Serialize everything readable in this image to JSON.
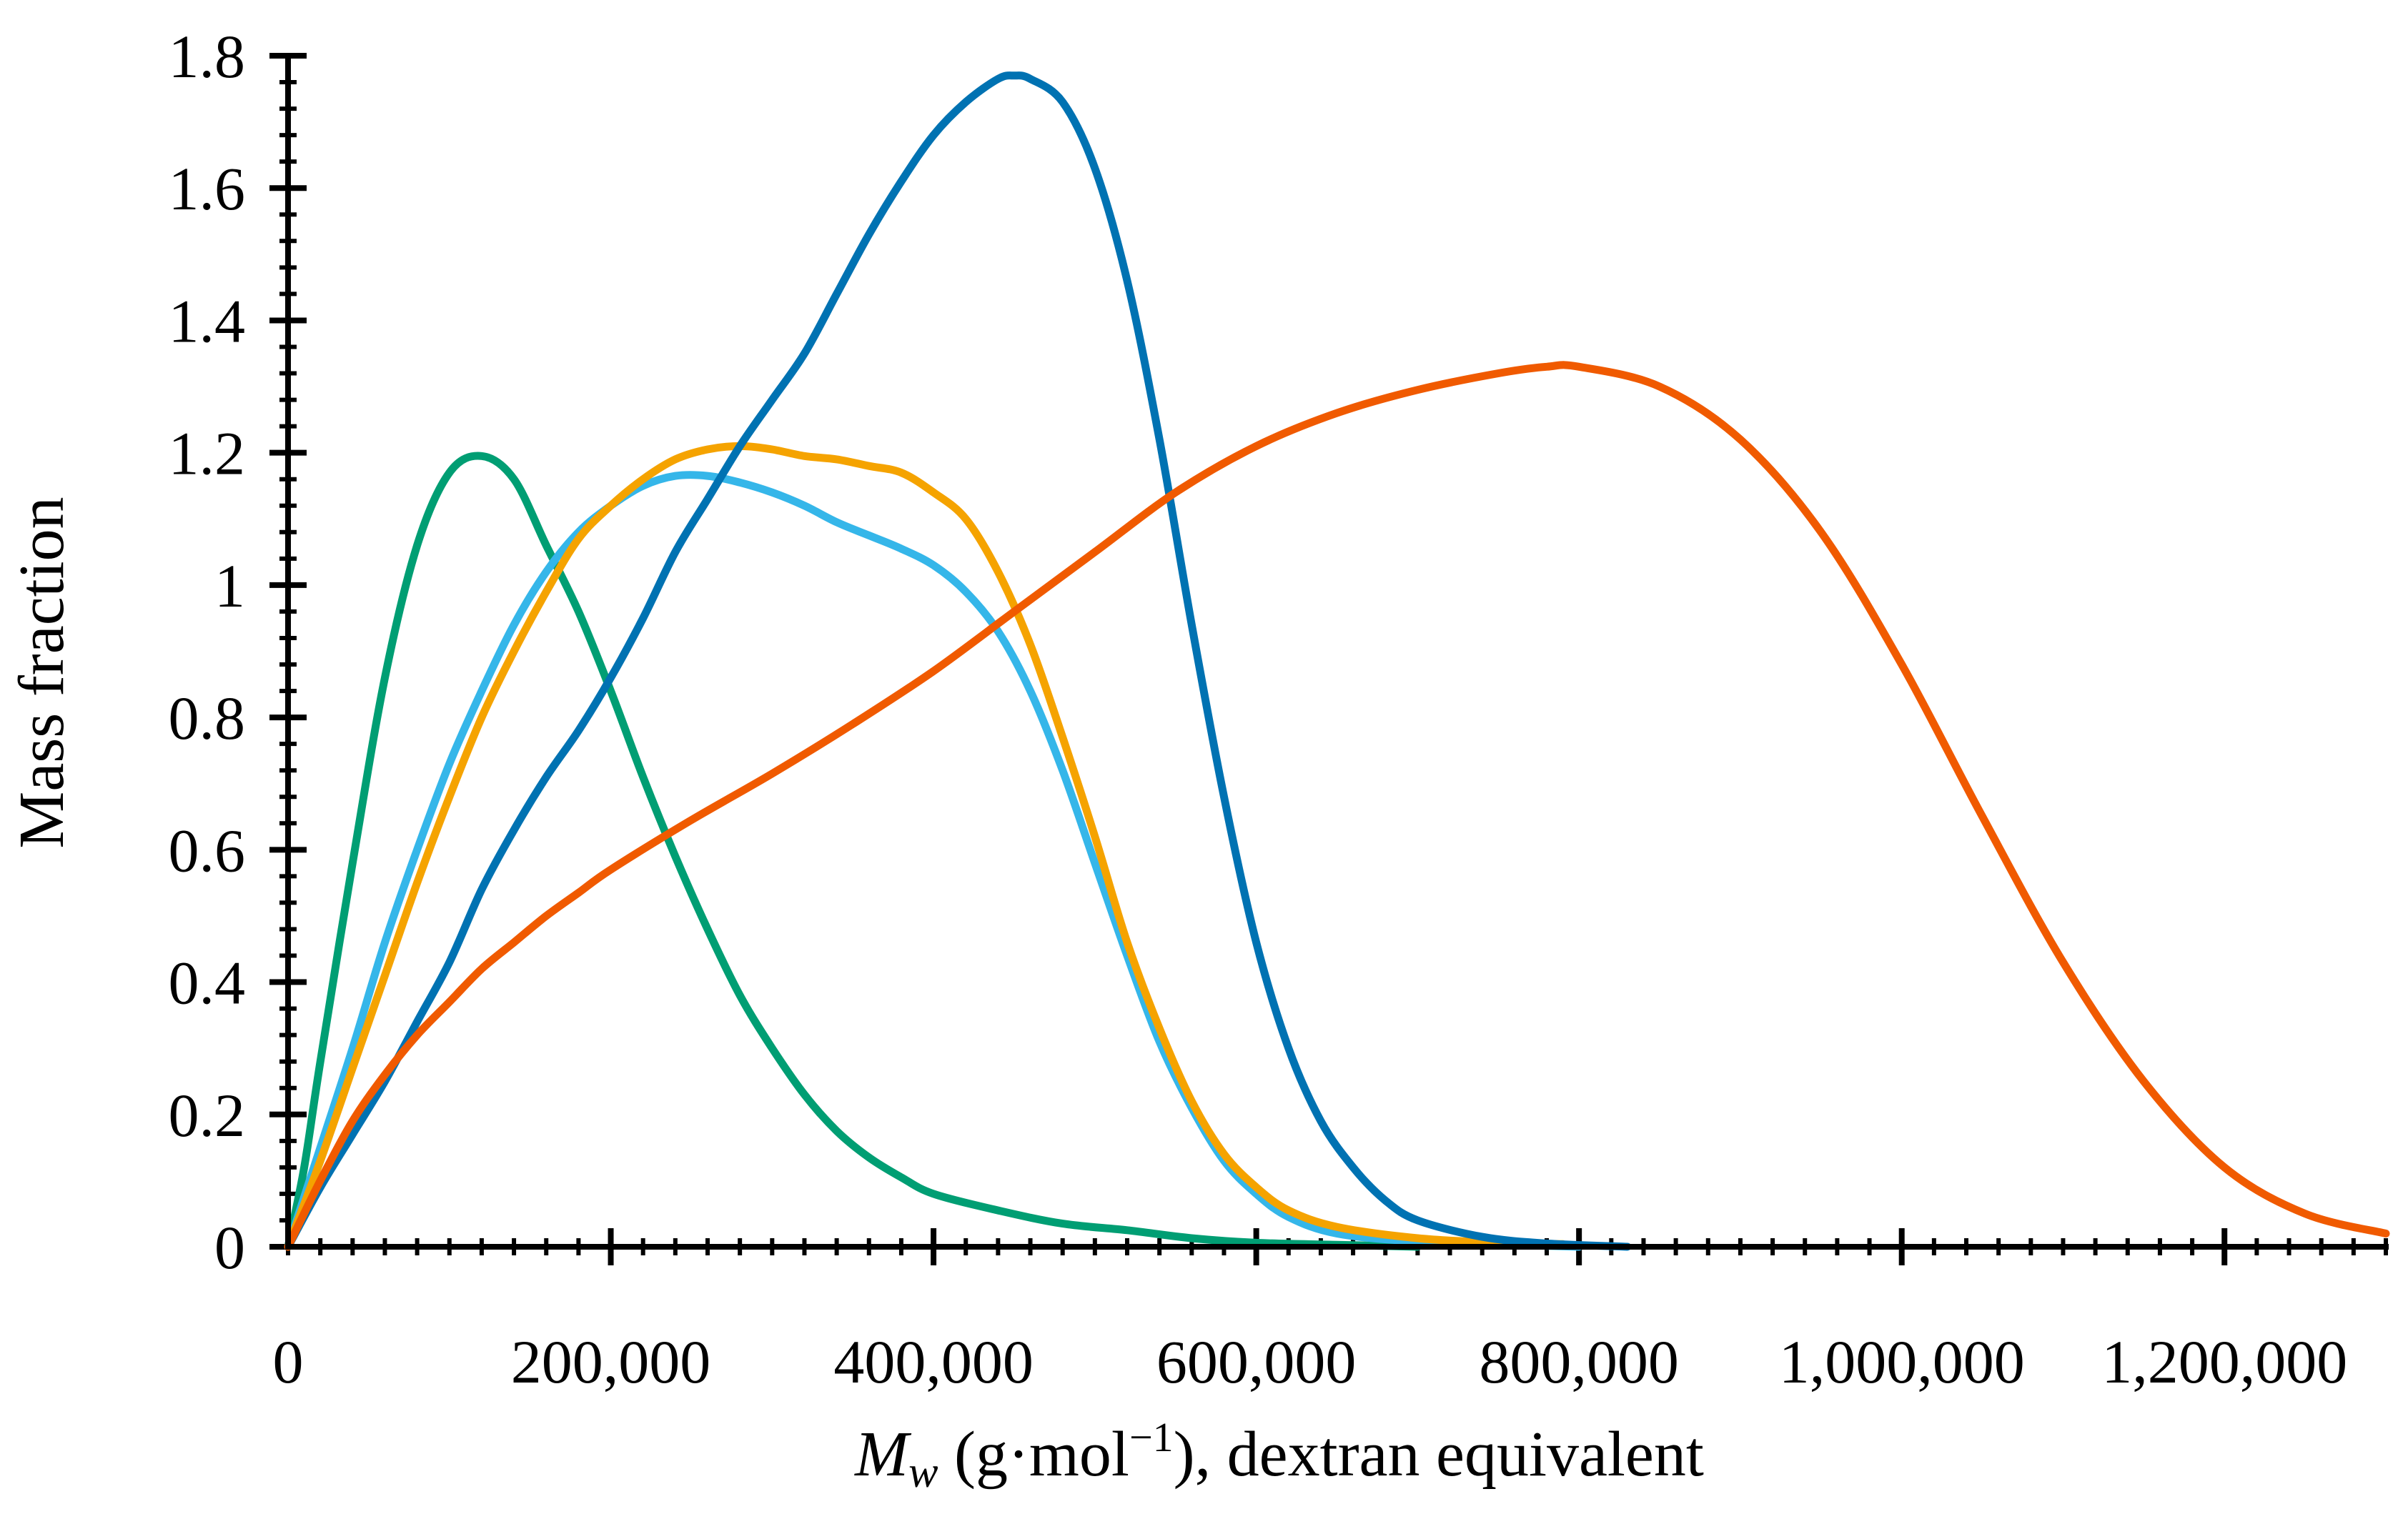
{
  "chart_data": {
    "type": "line",
    "title": "",
    "xlabel": {
      "symbol": "M",
      "subscript": "w",
      "rest": " (g·mol",
      "superscript": "−1",
      "tail": "), dextran equivalent"
    },
    "ylabel": "Mass fraction",
    "xlim": [
      0,
      1300000
    ],
    "ylim": [
      0,
      1.8
    ],
    "x_ticks": [
      0,
      200000,
      400000,
      600000,
      800000,
      1000000,
      1200000
    ],
    "x_tick_labels": [
      "0",
      "200,000",
      "400,000",
      "600,000",
      "800,000",
      "1,000,000",
      "1,200,000"
    ],
    "y_ticks": [
      0,
      0.2,
      0.4,
      0.6,
      0.8,
      1.0,
      1.2,
      1.4,
      1.6,
      1.8
    ],
    "y_tick_labels": [
      "0",
      "0.2",
      "0.4",
      "0.6",
      "0.8",
      "1",
      "1.2",
      "1.4",
      "1.6",
      "1.8"
    ],
    "x_minor_step": 20000,
    "y_minor_step": 0.04,
    "grid": false,
    "legend": "none",
    "series": [
      {
        "color": "#009E73",
        "points": [
          [
            0,
            0
          ],
          [
            10000,
            0.12
          ],
          [
            20000,
            0.28
          ],
          [
            40000,
            0.58
          ],
          [
            60000,
            0.86
          ],
          [
            80000,
            1.06
          ],
          [
            100000,
            1.17
          ],
          [
            120000,
            1.195
          ],
          [
            140000,
            1.16
          ],
          [
            160000,
            1.06
          ],
          [
            180000,
            0.96
          ],
          [
            200000,
            0.84
          ],
          [
            220000,
            0.71
          ],
          [
            240000,
            0.59
          ],
          [
            260000,
            0.48
          ],
          [
            280000,
            0.38
          ],
          [
            300000,
            0.3
          ],
          [
            320000,
            0.23
          ],
          [
            340000,
            0.175
          ],
          [
            360000,
            0.135
          ],
          [
            380000,
            0.105
          ],
          [
            400000,
            0.08
          ],
          [
            440000,
            0.055
          ],
          [
            480000,
            0.035
          ],
          [
            520000,
            0.025
          ],
          [
            560000,
            0.013
          ],
          [
            600000,
            0.006
          ],
          [
            650000,
            0.003
          ],
          [
            700000,
            0.0
          ]
        ]
      },
      {
        "color": "#35B6E9",
        "points": [
          [
            0,
            0
          ],
          [
            20000,
            0.15
          ],
          [
            40000,
            0.3
          ],
          [
            60000,
            0.46
          ],
          [
            80000,
            0.6
          ],
          [
            100000,
            0.73
          ],
          [
            120000,
            0.84
          ],
          [
            140000,
            0.94
          ],
          [
            160000,
            1.02
          ],
          [
            180000,
            1.08
          ],
          [
            200000,
            1.12
          ],
          [
            220000,
            1.15
          ],
          [
            240000,
            1.165
          ],
          [
            260000,
            1.165
          ],
          [
            280000,
            1.155
          ],
          [
            300000,
            1.14
          ],
          [
            320000,
            1.12
          ],
          [
            340000,
            1.095
          ],
          [
            360000,
            1.075
          ],
          [
            380000,
            1.055
          ],
          [
            400000,
            1.03
          ],
          [
            420000,
            0.99
          ],
          [
            440000,
            0.93
          ],
          [
            460000,
            0.84
          ],
          [
            480000,
            0.72
          ],
          [
            500000,
            0.58
          ],
          [
            520000,
            0.44
          ],
          [
            540000,
            0.31
          ],
          [
            560000,
            0.21
          ],
          [
            580000,
            0.13
          ],
          [
            600000,
            0.08
          ],
          [
            620000,
            0.045
          ],
          [
            650000,
            0.02
          ],
          [
            700000,
            0.008
          ],
          [
            760000,
            0.003
          ],
          [
            800000,
            0.0
          ]
        ]
      },
      {
        "color": "#F5A300",
        "points": [
          [
            0,
            0
          ],
          [
            20000,
            0.13
          ],
          [
            40000,
            0.27
          ],
          [
            60000,
            0.41
          ],
          [
            80000,
            0.55
          ],
          [
            100000,
            0.68
          ],
          [
            120000,
            0.8
          ],
          [
            140000,
            0.9
          ],
          [
            160000,
            0.99
          ],
          [
            180000,
            1.07
          ],
          [
            200000,
            1.12
          ],
          [
            220000,
            1.16
          ],
          [
            240000,
            1.19
          ],
          [
            260000,
            1.205
          ],
          [
            280000,
            1.21
          ],
          [
            300000,
            1.205
          ],
          [
            320000,
            1.195
          ],
          [
            340000,
            1.19
          ],
          [
            360000,
            1.18
          ],
          [
            380000,
            1.17
          ],
          [
            400000,
            1.14
          ],
          [
            420000,
            1.1
          ],
          [
            440000,
            1.02
          ],
          [
            460000,
            0.91
          ],
          [
            480000,
            0.77
          ],
          [
            500000,
            0.62
          ],
          [
            520000,
            0.46
          ],
          [
            540000,
            0.33
          ],
          [
            560000,
            0.22
          ],
          [
            580000,
            0.14
          ],
          [
            600000,
            0.09
          ],
          [
            620000,
            0.055
          ],
          [
            650000,
            0.03
          ],
          [
            700000,
            0.013
          ],
          [
            750000,
            0.006
          ],
          [
            790000,
            0.004
          ]
        ]
      },
      {
        "color": "#0072B2",
        "points": [
          [
            0,
            0
          ],
          [
            20000,
            0.09
          ],
          [
            40000,
            0.17
          ],
          [
            60000,
            0.25
          ],
          [
            80000,
            0.34
          ],
          [
            100000,
            0.43
          ],
          [
            120000,
            0.54
          ],
          [
            140000,
            0.63
          ],
          [
            160000,
            0.71
          ],
          [
            180000,
            0.78
          ],
          [
            200000,
            0.86
          ],
          [
            220000,
            0.95
          ],
          [
            240000,
            1.05
          ],
          [
            260000,
            1.13
          ],
          [
            280000,
            1.21
          ],
          [
            300000,
            1.28
          ],
          [
            320000,
            1.35
          ],
          [
            340000,
            1.44
          ],
          [
            360000,
            1.53
          ],
          [
            380000,
            1.61
          ],
          [
            400000,
            1.68
          ],
          [
            420000,
            1.73
          ],
          [
            440000,
            1.765
          ],
          [
            450000,
            1.77
          ],
          [
            460000,
            1.765
          ],
          [
            480000,
            1.73
          ],
          [
            500000,
            1.63
          ],
          [
            520000,
            1.46
          ],
          [
            540000,
            1.22
          ],
          [
            560000,
            0.94
          ],
          [
            580000,
            0.68
          ],
          [
            600000,
            0.46
          ],
          [
            620000,
            0.3
          ],
          [
            640000,
            0.19
          ],
          [
            660000,
            0.12
          ],
          [
            680000,
            0.07
          ],
          [
            700000,
            0.04
          ],
          [
            740000,
            0.015
          ],
          [
            780000,
            0.005
          ],
          [
            830000,
            0.0
          ]
        ]
      },
      {
        "color": "#F05A00",
        "points": [
          [
            0,
            0
          ],
          [
            20000,
            0.1
          ],
          [
            40000,
            0.19
          ],
          [
            60000,
            0.26
          ],
          [
            80000,
            0.32
          ],
          [
            100000,
            0.37
          ],
          [
            120000,
            0.42
          ],
          [
            140000,
            0.46
          ],
          [
            160000,
            0.5
          ],
          [
            180000,
            0.535
          ],
          [
            200000,
            0.57
          ],
          [
            250000,
            0.645
          ],
          [
            300000,
            0.715
          ],
          [
            350000,
            0.79
          ],
          [
            400000,
            0.87
          ],
          [
            450000,
            0.96
          ],
          [
            500000,
            1.05
          ],
          [
            550000,
            1.14
          ],
          [
            600000,
            1.21
          ],
          [
            650000,
            1.26
          ],
          [
            700000,
            1.295
          ],
          [
            750000,
            1.32
          ],
          [
            780000,
            1.33
          ],
          [
            800000,
            1.33
          ],
          [
            850000,
            1.3
          ],
          [
            900000,
            1.22
          ],
          [
            950000,
            1.08
          ],
          [
            1000000,
            0.88
          ],
          [
            1050000,
            0.65
          ],
          [
            1100000,
            0.43
          ],
          [
            1150000,
            0.25
          ],
          [
            1200000,
            0.12
          ],
          [
            1250000,
            0.05
          ],
          [
            1300000,
            0.02
          ]
        ]
      }
    ]
  }
}
